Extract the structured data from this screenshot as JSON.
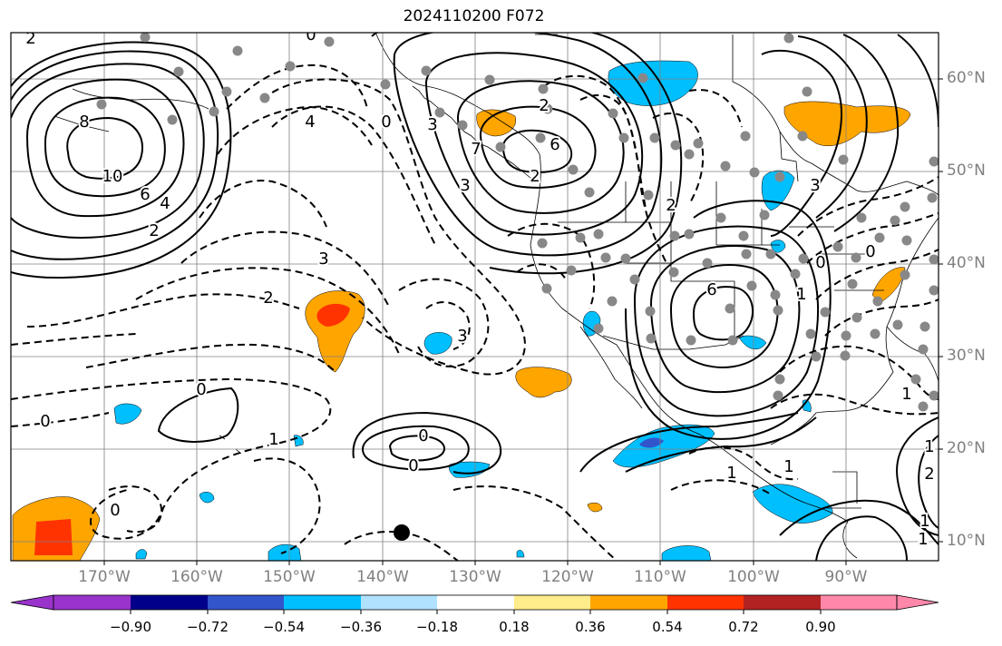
{
  "title": "2024110200 F072",
  "lat_labels": [
    "60°N",
    "50°N",
    "40°N",
    "30°N",
    "20°N",
    "10°N"
  ],
  "lon_labels": [
    "170°W",
    "160°W",
    "150°W",
    "140°W",
    "130°W",
    "120°W",
    "110°W",
    "100°W",
    "90°W"
  ],
  "contour_labels": [
    "2",
    "0",
    "8",
    "10",
    "6",
    "4",
    "2",
    "3",
    "0",
    "0",
    "6",
    "7",
    "3",
    "4",
    "0",
    "3",
    "2",
    "3",
    "2",
    "2",
    "0",
    "0",
    "2",
    "1",
    "1",
    "0",
    "1",
    "1",
    "6",
    "3",
    "0",
    "1",
    "1",
    "1",
    "0",
    "1",
    "2"
  ],
  "colorbar": {
    "ticks": [
      "−0.90",
      "−0.72",
      "−0.54",
      "−0.36",
      "−0.18",
      "0.18",
      "0.36",
      "0.54",
      "0.72",
      "0.90"
    ],
    "colors": [
      "#9933cc",
      "#00008b",
      "#3355cc",
      "#00bfff",
      "#b0e2ff",
      "#ffffff",
      "#ffec8b",
      "#ffa500",
      "#ff3300",
      "#b22222",
      "#ff88aa"
    ]
  },
  "colors": {
    "border": "#000000",
    "gridline": "#808080",
    "dot": "#888888"
  }
}
